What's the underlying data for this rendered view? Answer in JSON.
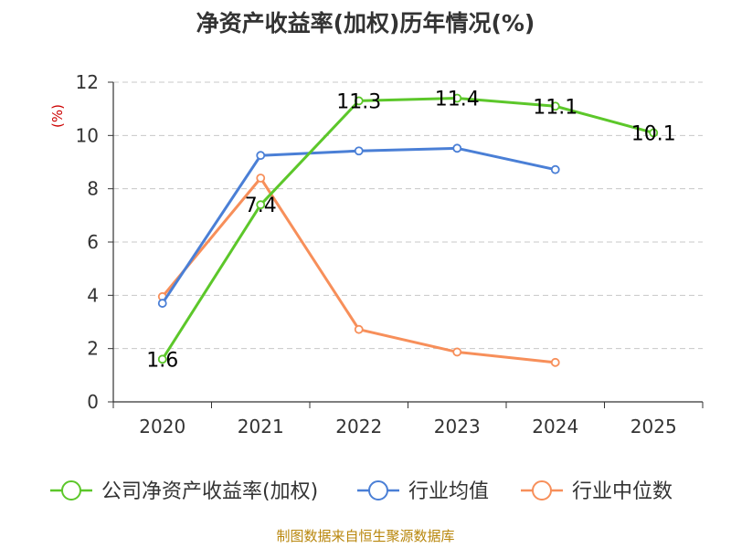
{
  "chart_data": {
    "type": "line",
    "title": "净资产收益率(加权)历年情况(%)",
    "ylabel": "(%)",
    "xlabel": "",
    "categories": [
      "2020",
      "2021",
      "2022",
      "2023",
      "2024",
      "2025"
    ],
    "ylim": [
      0,
      12
    ],
    "yticks": [
      0,
      2,
      4,
      6,
      8,
      10,
      12
    ],
    "grid": true,
    "legend_position": "bottom",
    "series": [
      {
        "name": "公司净资产收益率(加权)",
        "color": "#5cc72a",
        "values": [
          1.6,
          7.4,
          11.3,
          11.4,
          11.1,
          10.1
        ],
        "labels": [
          "1.6",
          "7.4",
          "11.3",
          "11.4",
          "11.1",
          "10.1"
        ]
      },
      {
        "name": "行业均值",
        "color": "#4a7fd6",
        "values": [
          3.7,
          9.25,
          9.42,
          9.52,
          8.72,
          null
        ]
      },
      {
        "name": "行业中位数",
        "color": "#f78f5a",
        "values": [
          3.95,
          8.4,
          2.72,
          1.87,
          1.48,
          null
        ]
      }
    ],
    "source": "制图数据来自恒生聚源数据库"
  }
}
